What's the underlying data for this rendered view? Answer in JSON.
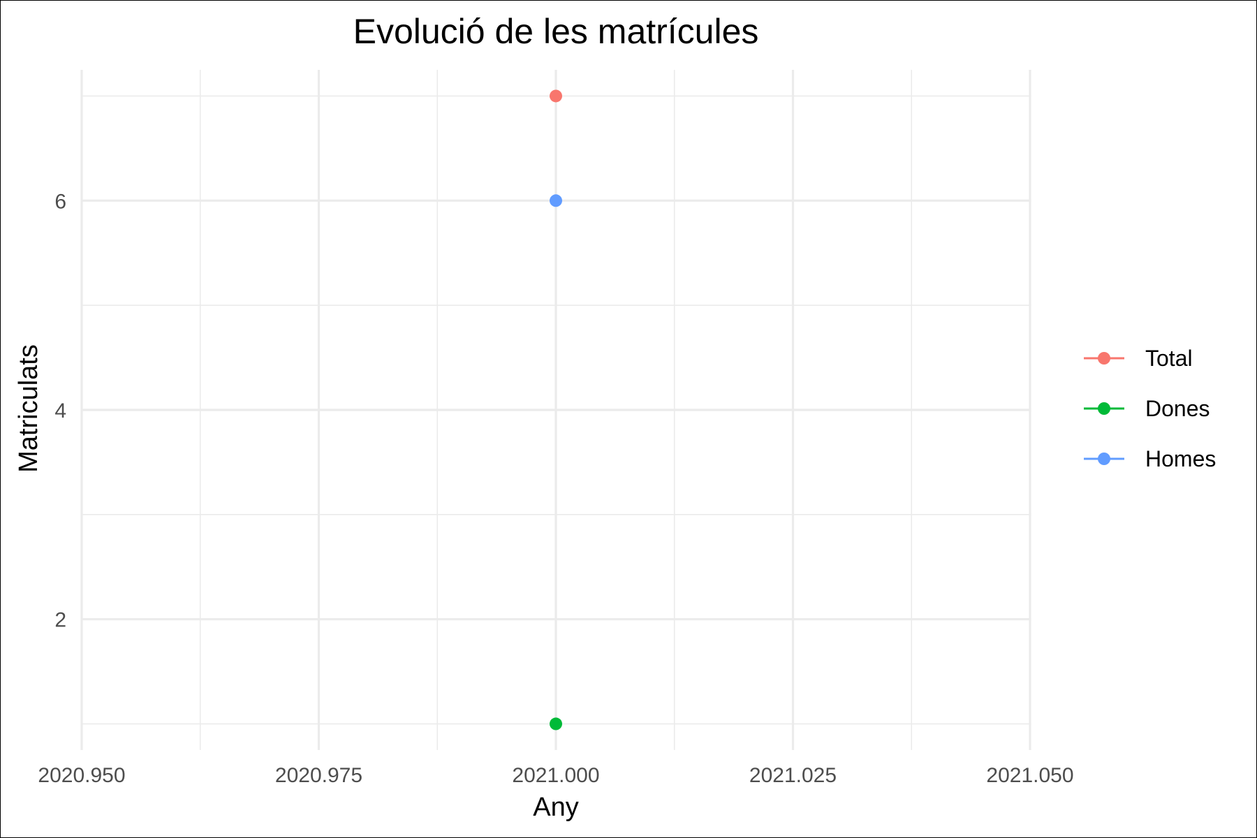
{
  "chart_data": {
    "type": "line",
    "title": "Evolució de les matrícules",
    "xlabel": "Any",
    "ylabel": "Matriculats",
    "xlim": [
      2020.95,
      2021.05
    ],
    "ylim": [
      0.75,
      7.25
    ],
    "x_ticks": [
      2020.95,
      2020.975,
      2021.0,
      2021.025,
      2021.05
    ],
    "x_tick_labels": [
      "2020.950",
      "2020.975",
      "2021.000",
      "2021.025",
      "2021.050"
    ],
    "y_ticks": [
      2,
      4,
      6
    ],
    "y_tick_labels": [
      "2",
      "4",
      "6"
    ],
    "grid": true,
    "legend_position": "right",
    "series": [
      {
        "name": "Total",
        "color": "#F8766D",
        "x": [
          2021.0
        ],
        "y": [
          7
        ]
      },
      {
        "name": "Dones",
        "color": "#00BA38",
        "x": [
          2021.0
        ],
        "y": [
          1
        ]
      },
      {
        "name": "Homes",
        "color": "#619CFF",
        "x": [
          2021.0
        ],
        "y": [
          6
        ]
      }
    ]
  }
}
